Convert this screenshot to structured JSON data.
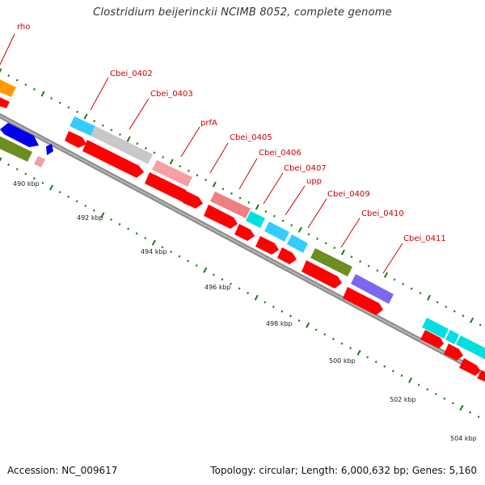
{
  "title": "Clostridium beijerinckii NCIMB 8052, complete genome",
  "footer": {
    "accession": "Accession: NC_009617",
    "topology": "Topology: circular; Length: 6,000,632 bp; Genes: 5,160"
  },
  "gene_labels": [
    "rho",
    "Cbei_0402",
    "Cbei_0403",
    "prfA",
    "Cbei_0405",
    "Cbei_0406",
    "Cbei_0407",
    "upp",
    "Cbei_0409",
    "Cbei_0410",
    "Cbei_0411"
  ],
  "kbp_ticks": [
    "490 kbp",
    "492 kbp",
    "494 kbp",
    "496 kbp",
    "498 kbp",
    "500 kbp",
    "502 kbp",
    "504 kbp"
  ],
  "colors": {
    "backbone": "#8a8a8a",
    "cds": "#ff0000",
    "gene_label": "#cc0000",
    "tick": "#1a7a1a",
    "orange": "#ff9900",
    "blue": "#0000ee",
    "olive": "#6b8e23",
    "lightpink": "#f4a0a0",
    "skyblue": "#33ccff",
    "gray": "#c8c8c8",
    "salmon": "#f08080",
    "cyan": "#00e0e0",
    "purple": "#7b68ee"
  }
}
